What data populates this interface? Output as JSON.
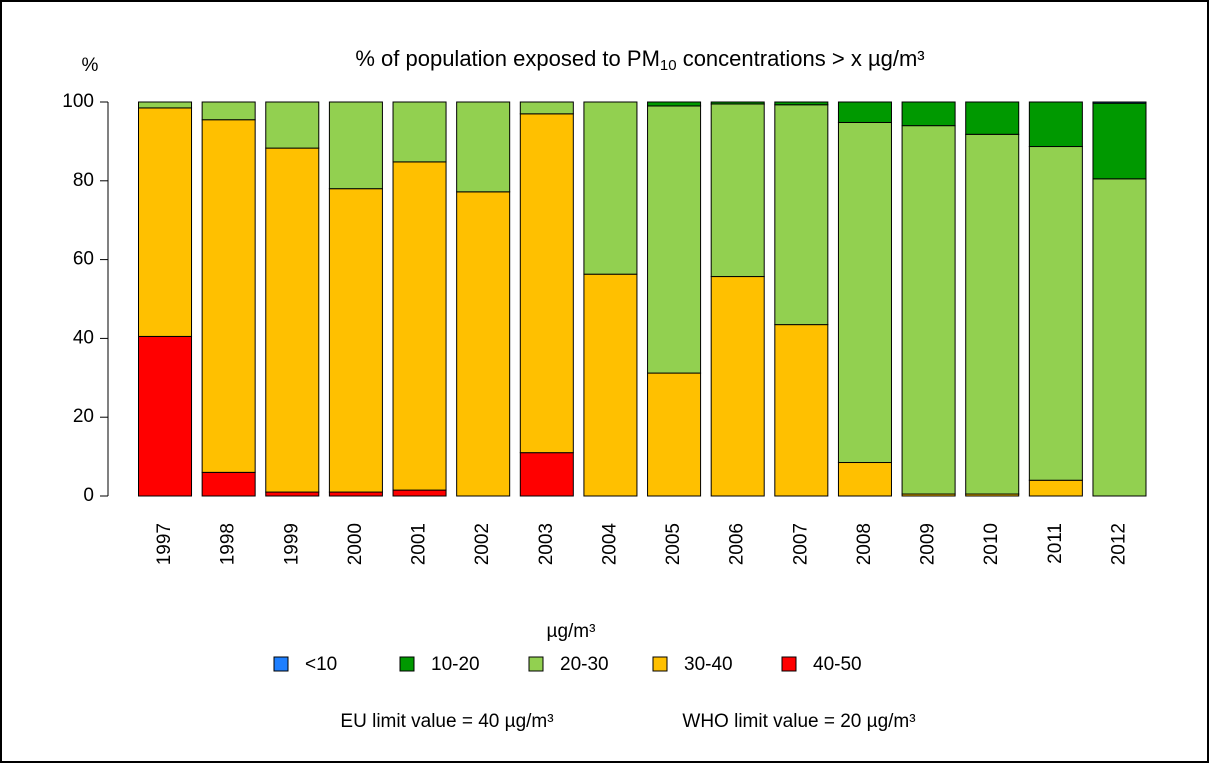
{
  "chart_data": {
    "type": "stacked_bar",
    "title": [
      "% of population exposed to PM",
      "10",
      " concentrations > x µg/m³"
    ],
    "y_label": "%",
    "categories": [
      "1997",
      "1998",
      "1999",
      "2000",
      "2001",
      "2002",
      "2003",
      "2004",
      "2005",
      "2006",
      "2007",
      "2008",
      "2009",
      "2010",
      "2011",
      "2012"
    ],
    "legend_title": "µg/m³",
    "series": [
      {
        "name": "<10",
        "color": "#1e7fff",
        "values": [
          0,
          0,
          0,
          0,
          0,
          0,
          0,
          0,
          0,
          0,
          0,
          0,
          0,
          0,
          0,
          0.3
        ]
      },
      {
        "name": "10-20",
        "color": "#009900",
        "values": [
          0,
          0,
          0,
          0,
          0,
          0,
          0,
          0,
          1,
          0.5,
          0.7,
          5.2,
          6,
          8.2,
          11.3,
          19.2
        ]
      },
      {
        "name": "20-30",
        "color": "#92d050",
        "values": [
          1.5,
          4.5,
          11.7,
          22,
          15.2,
          22.8,
          3,
          43.7,
          67.8,
          43.8,
          55.8,
          86.3,
          93.5,
          91.3,
          84.7,
          80.5
        ]
      },
      {
        "name": "30-40",
        "color": "#ffc000",
        "values": [
          58,
          89.5,
          87.3,
          77,
          83.3,
          77.2,
          86,
          56.3,
          31.2,
          55.7,
          43.5,
          8.5,
          0.5,
          0.5,
          4,
          0
        ]
      },
      {
        "name": "40-50",
        "color": "#ff0000",
        "values": [
          40.5,
          6,
          1,
          1,
          1.5,
          0,
          11,
          0,
          0,
          0,
          0,
          0,
          0,
          0,
          0,
          0
        ]
      }
    ],
    "ylim": [
      0,
      100
    ],
    "yticks": [
      0,
      20,
      40,
      60,
      80,
      100
    ],
    "notes": [
      "EU limit value = 40 µg/m³",
      "WHO limit value = 20 µg/m³"
    ]
  }
}
